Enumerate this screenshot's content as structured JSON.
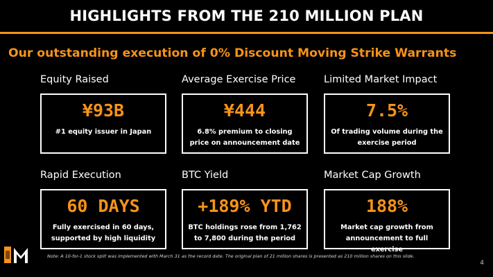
{
  "header": {
    "title": "HIGHLIGHTS FROM THE 210 MILLION PLAN"
  },
  "subtitle": "Our outstanding execution of 0% Discount Moving Strike Warrants",
  "cards": [
    {
      "label": "Equity Raised",
      "value": "¥93B",
      "desc": "#1 equity issuer in Japan"
    },
    {
      "label": "Average Exercise Price",
      "value": "¥444",
      "desc": "6.8% premium to closing price on announcement date"
    },
    {
      "label": "Limited Market Impact",
      "value": "7.5%",
      "desc": "Of trading volume during the exercise period"
    },
    {
      "label": "Rapid Execution",
      "value": "60 DAYS",
      "desc": "Fully exercised in 60 days, supported by high liquidity"
    },
    {
      "label": "BTC Yield",
      "value": "+189% YTD",
      "desc": "BTC holdings rose from 1,762 to 7,800 during the period"
    },
    {
      "label": "Market Cap Growth",
      "value": "188%",
      "desc": "Market cap growth from announcement to full exercise"
    }
  ],
  "footer": {
    "note": "Note: A 10-for-1 stock split was implemented with March 31 as the record date. The original plan of 21 million shares is presented as 210 million shares on this slide.",
    "page_number": "4"
  },
  "colors": {
    "accent": "#f7931a",
    "background": "#000000",
    "text": "#ffffff"
  },
  "icons": {
    "logo": "company-logo-m"
  }
}
